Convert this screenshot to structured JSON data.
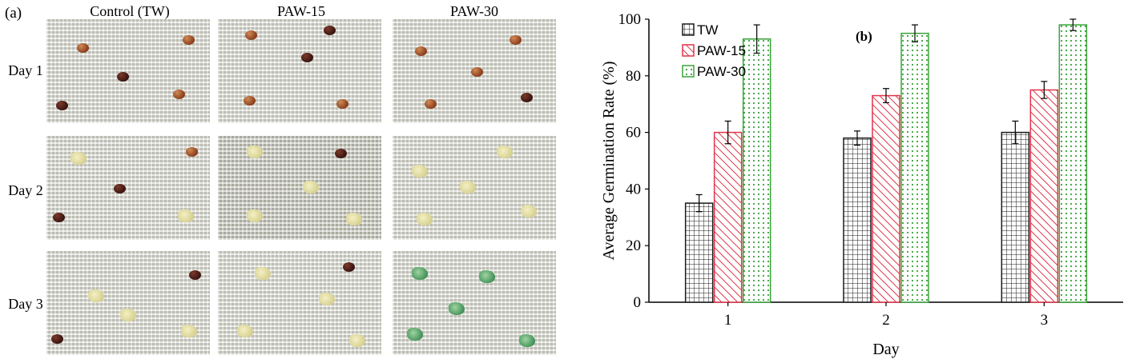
{
  "panel_a": {
    "label": "(a)",
    "columns": [
      "Control (TW)",
      "PAW-15",
      "PAW-30"
    ],
    "rows": [
      "Day 1",
      "Day 2",
      "Day 3"
    ]
  },
  "colors": {
    "TW": "#1a1a1a",
    "PAW-15": "#e0344a",
    "PAW-30": "#3aa33a"
  },
  "chart_data": {
    "type": "bar",
    "panel_label": "(b)",
    "categories": [
      "1",
      "2",
      "3"
    ],
    "xlabel": "Day",
    "ylabel": "Average Germination Rate (%)",
    "ylim": [
      0,
      100
    ],
    "yticks": [
      0,
      20,
      40,
      60,
      80,
      100
    ],
    "legend_position": "top-left",
    "series": [
      {
        "name": "TW",
        "values": [
          35,
          58,
          60
        ],
        "errors": [
          3,
          2.5,
          4
        ],
        "pattern": "grid"
      },
      {
        "name": "PAW-15",
        "values": [
          60,
          73,
          75
        ],
        "errors": [
          4,
          2.5,
          3
        ],
        "pattern": "diagonal"
      },
      {
        "name": "PAW-30",
        "values": [
          93,
          95,
          98
        ],
        "errors": [
          5,
          3,
          2
        ],
        "pattern": "dots"
      }
    ]
  }
}
